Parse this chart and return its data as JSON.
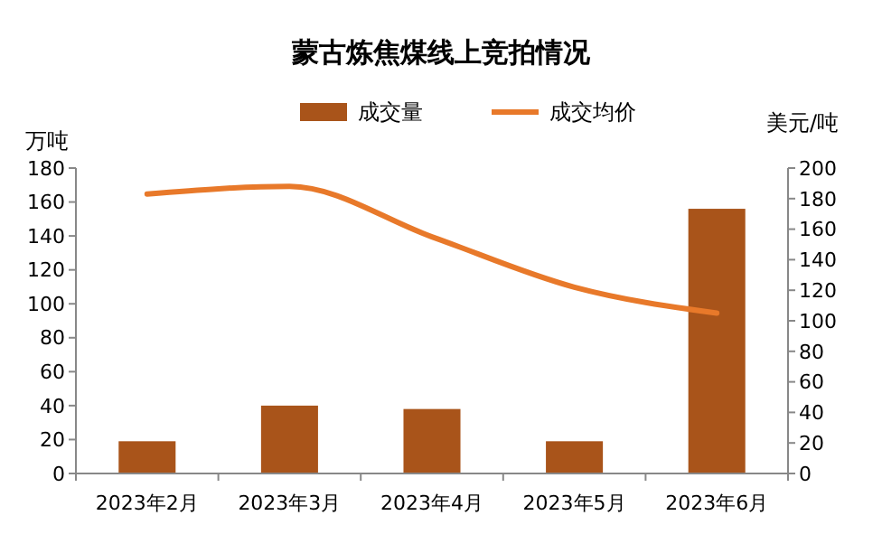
{
  "chart_data": {
    "type": "bar",
    "title": "蒙古炼焦煤线上竞拍情况",
    "ylabel": "万吨",
    "y2label": "美元/吨",
    "categories": [
      "2023年2月",
      "2023年3月",
      "2023年4月",
      "2023年5月",
      "2023年6月"
    ],
    "series": [
      {
        "name": "成交量",
        "color": "#a9541a",
        "values": [
          19,
          40,
          38,
          19,
          156
        ]
      },
      {
        "name": "成交均价",
        "type": "line",
        "axis": "y2",
        "color": "#e8792a",
        "values": [
          183,
          188,
          155,
          122,
          105
        ]
      }
    ],
    "ylim": [
      0,
      180
    ],
    "yticks": [
      0,
      20,
      40,
      60,
      80,
      100,
      120,
      140,
      160,
      180
    ],
    "y2lim": [
      0,
      200
    ],
    "y2ticks": [
      0,
      20,
      40,
      60,
      80,
      100,
      120,
      140,
      160,
      180,
      200
    ],
    "grid": false,
    "legend": "top",
    "marker": "none",
    "line_style": "solid"
  }
}
